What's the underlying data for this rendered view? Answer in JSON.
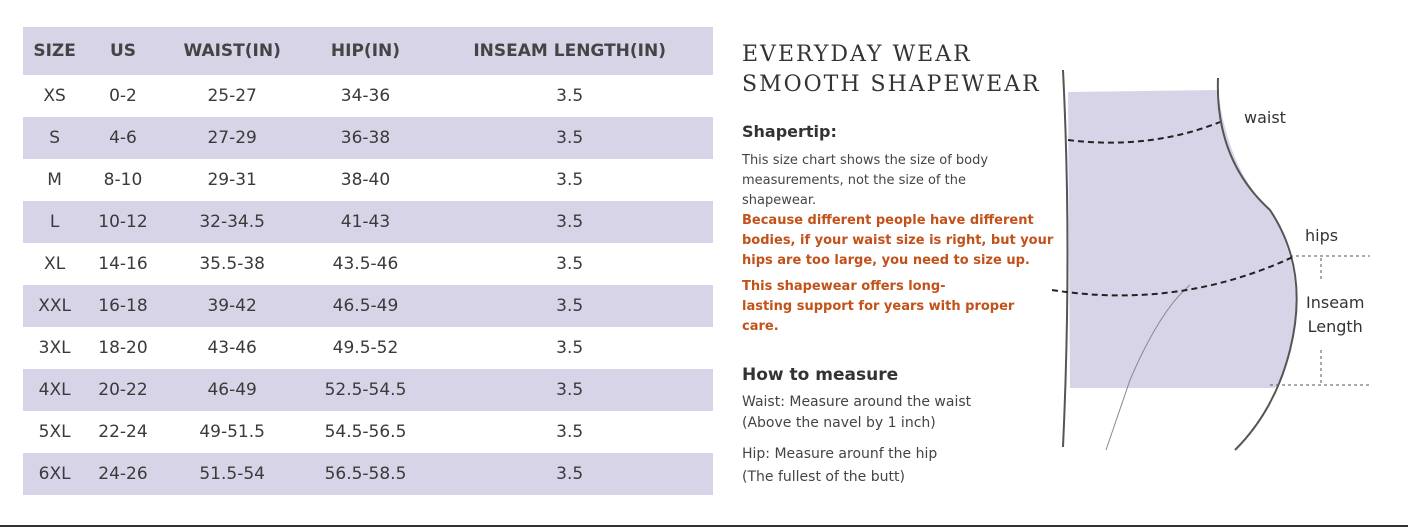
{
  "table": {
    "header": [
      "SIZE",
      "US",
      "WAIST(IN)",
      "HIP(IN)",
      "INSEAM LENGTH(IN)"
    ],
    "rows": [
      [
        "XS",
        "0-2",
        "25-27",
        "34-36",
        "3.5"
      ],
      [
        "S",
        "4-6",
        "27-29",
        "36-38",
        "3.5"
      ],
      [
        "M",
        "8-10",
        "29-31",
        "38-40",
        "3.5"
      ],
      [
        "L",
        "10-12",
        "32-34.5",
        "41-43",
        "3.5"
      ],
      [
        "XL",
        "14-16",
        "35.5-38",
        "43.5-46",
        "3.5"
      ],
      [
        "XXL",
        "16-18",
        "39-42",
        "46.5-49",
        "3.5"
      ],
      [
        "3XL",
        "18-20",
        "43-46",
        "49.5-52",
        "3.5"
      ],
      [
        "4XL",
        "20-22",
        "46-49",
        "52.5-54.5",
        "3.5"
      ],
      [
        "5XL",
        "22-24",
        "49-51.5",
        "54.5-56.5",
        "3.5"
      ],
      [
        "6XL",
        "24-26",
        "51.5-54",
        "56.5-58.5",
        "3.5"
      ]
    ]
  },
  "info": {
    "title": [
      "EVERYDAY WEAR",
      "SMOOTH SHAPEWEAR"
    ],
    "tip_heading": "Shapertip:",
    "tip_text": [
      "This size chart shows the size of body",
      "measurements, not the size of the",
      "shapewear."
    ],
    "warning_1": [
      "Because different people have different",
      "bodies, if your waist size is right, but your",
      "hips are too large, you need to size up."
    ],
    "warning_2": [
      "This shapewear offers long-",
      "lasting support for years with proper",
      "care."
    ],
    "measure_heading": "How to measure",
    "waist_note": [
      "Waist: Measure around the waist",
      "(Above the navel by 1 inch)"
    ],
    "hip_note": [
      "Hip: Measure arounf the hip",
      "(The fullest of the butt)"
    ]
  },
  "diagram": {
    "waist": "waist",
    "hips": "hips",
    "inseam": [
      "Inseam",
      "Length"
    ]
  }
}
